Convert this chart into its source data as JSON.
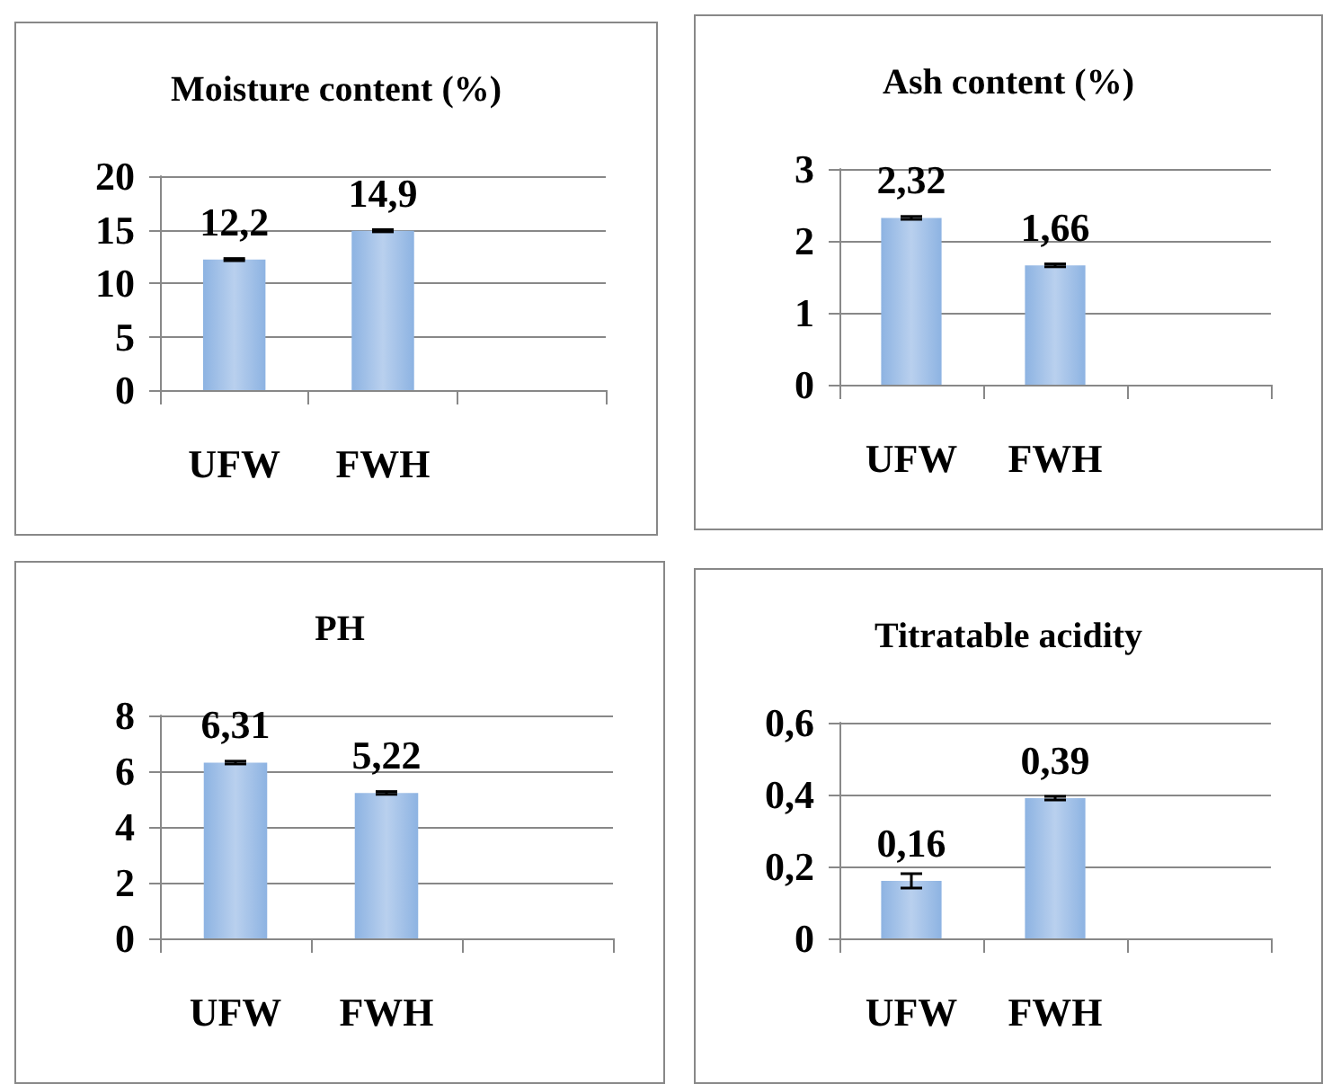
{
  "chart_data": [
    {
      "type": "bar",
      "title": "Moisture content (%)",
      "categories": [
        "UFW",
        "FWH",
        null
      ],
      "values": [
        12.2,
        14.9,
        null
      ],
      "value_labels": [
        "12,2",
        "14,9",
        null
      ],
      "errors": [
        0.1,
        0.1,
        null
      ],
      "color": "#8db3e2",
      "ylim": [
        0,
        20
      ],
      "yticks": [
        0,
        5,
        10,
        15,
        20
      ],
      "grid": "y"
    },
    {
      "type": "bar",
      "title": "Ash content (%)",
      "categories": [
        "UFW",
        "FWH",
        null
      ],
      "values": [
        2.32,
        1.66,
        null
      ],
      "value_labels": [
        "2,32",
        "1,66",
        null
      ],
      "errors": [
        0.02,
        0.02,
        null
      ],
      "color": "#8db3e2",
      "ylim": [
        0,
        3
      ],
      "yticks": [
        0,
        1,
        2,
        3
      ],
      "grid": "y"
    },
    {
      "type": "bar",
      "title": "PH",
      "categories": [
        "UFW",
        "FWH",
        null
      ],
      "values": [
        6.31,
        5.22,
        null
      ],
      "value_labels": [
        "6,31",
        "5,22",
        null
      ],
      "errors": [
        0.05,
        0.05,
        null
      ],
      "color": "#8db3e2",
      "ylim": [
        0,
        8
      ],
      "yticks": [
        0,
        2,
        4,
        6,
        8
      ],
      "grid": "y"
    },
    {
      "type": "bar",
      "title": "Titratable acidity",
      "categories": [
        "UFW",
        "FWH",
        null
      ],
      "values": [
        0.16,
        0.39,
        null
      ],
      "value_labels": [
        "0,16",
        "0,39",
        null
      ],
      "errors": [
        0.02,
        0.005,
        null
      ],
      "color": "#8db3e2",
      "ylim": [
        0,
        0.6
      ],
      "yticks": [
        0,
        {
          "value": 0.2,
          "label": "0,2"
        },
        {
          "value": 0.4,
          "label": "0,4"
        },
        {
          "value": 0.6,
          "label": "0,6"
        }
      ],
      "grid": "y"
    }
  ]
}
